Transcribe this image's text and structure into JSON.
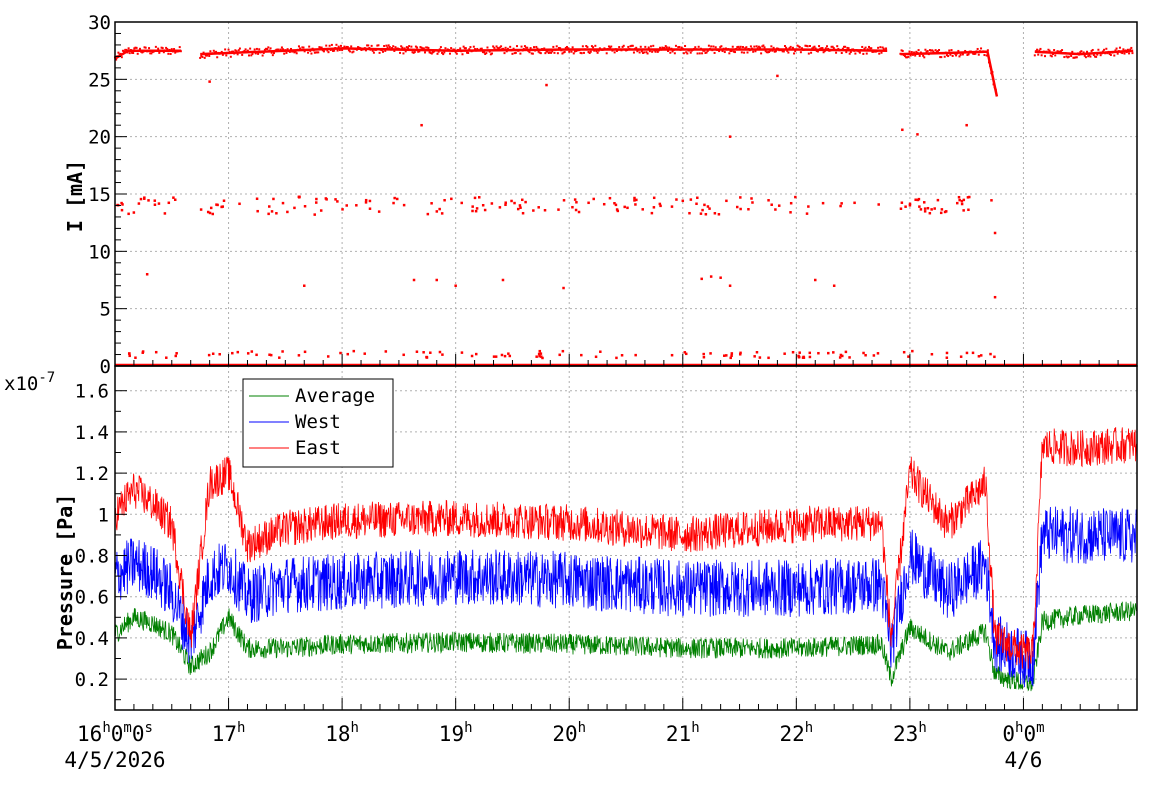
{
  "chart_data": [
    {
      "type": "scatter",
      "ylabel": "I [mA]",
      "ylim": [
        0,
        30
      ],
      "yticks": [
        "0",
        "5",
        "10",
        "15",
        "20",
        "25",
        "30"
      ],
      "grid": true,
      "colors": {
        "current": "#ff0000"
      },
      "series": [
        {
          "segments": [
            {
              "x": [
                "16:00",
                "16:07",
                "16:20",
                "16:35"
              ],
              "y": [
                26.8,
                27.5,
                27.5,
                27.5
              ]
            },
            {
              "x": [
                "16:45",
                "17:30",
                "18:00",
                "19:00",
                "20:00",
                "21:00",
                "22:00",
                "22:48"
              ],
              "y": [
                27.2,
                27.5,
                27.7,
                27.5,
                27.6,
                27.6,
                27.6,
                27.5
              ]
            },
            {
              "x": [
                "22:55",
                "23:20",
                "23:40",
                "23:41",
                "23:46"
              ],
              "y": [
                27.2,
                27.3,
                27.4,
                27.4,
                23.5
              ]
            },
            {
              "x": [
                "00:06",
                "00:30",
                "00:58"
              ],
              "y": [
                27.4,
                27.2,
                27.5
              ]
            }
          ],
          "outlier_bands_mA": [
            14,
            1,
            0
          ],
          "sparse_points": [
            {
              "x": "16:17",
              "y": 8
            },
            {
              "x": "16:50",
              "y": 24.8
            },
            {
              "x": "17:40",
              "y": 7
            },
            {
              "x": "18:42",
              "y": 21
            },
            {
              "x": "18:38",
              "y": 7.5
            },
            {
              "x": "18:50",
              "y": 7.5
            },
            {
              "x": "19:00",
              "y": 7
            },
            {
              "x": "19:25",
              "y": 7.5
            },
            {
              "x": "19:48",
              "y": 24.5
            },
            {
              "x": "19:57",
              "y": 6.8
            },
            {
              "x": "21:10",
              "y": 7.6
            },
            {
              "x": "21:15",
              "y": 7.8
            },
            {
              "x": "21:20",
              "y": 7.7
            },
            {
              "x": "21:25",
              "y": 7
            },
            {
              "x": "21:25",
              "y": 20
            },
            {
              "x": "21:50",
              "y": 25.3
            },
            {
              "x": "22:10",
              "y": 7.5
            },
            {
              "x": "22:20",
              "y": 7
            },
            {
              "x": "22:56",
              "y": 20.6
            },
            {
              "x": "23:04",
              "y": 20.2
            },
            {
              "x": "23:30",
              "y": 21
            },
            {
              "x": "23:45",
              "y": 11.6
            },
            {
              "x": "23:45",
              "y": 6
            }
          ]
        }
      ]
    },
    {
      "type": "line",
      "ylabel": "Pressure [Pa]",
      "exponent_label": "x10",
      "exponent_value": "-7",
      "ylim": [
        0.05,
        1.72
      ],
      "yticks": [
        "0.2",
        "0.4",
        "0.6",
        "0.8",
        "1",
        "1.2",
        "1.4",
        "1.6"
      ],
      "grid": true,
      "legend_position": "top-left",
      "series": [
        {
          "name": "Average",
          "color": "#008000",
          "x": [
            "16:00",
            "16:10",
            "16:20",
            "16:30",
            "16:40",
            "16:50",
            "17:00",
            "17:10",
            "17:30",
            "18:00",
            "19:00",
            "20:00",
            "21:00",
            "22:00",
            "22:45",
            "22:50",
            "23:00",
            "23:20",
            "23:40",
            "23:45",
            "00:00",
            "00:05",
            "00:10",
            "00:30",
            "00:58"
          ],
          "y": [
            0.42,
            0.5,
            0.47,
            0.42,
            0.26,
            0.33,
            0.5,
            0.35,
            0.35,
            0.37,
            0.38,
            0.37,
            0.35,
            0.35,
            0.37,
            0.2,
            0.45,
            0.33,
            0.43,
            0.22,
            0.18,
            0.18,
            0.48,
            0.51,
            0.53
          ]
        },
        {
          "name": "West",
          "color": "#0000ff",
          "x": [
            "16:00",
            "16:10",
            "16:20",
            "16:30",
            "16:40",
            "16:50",
            "17:00",
            "17:10",
            "17:30",
            "18:00",
            "19:00",
            "20:00",
            "21:00",
            "22:00",
            "22:45",
            "22:50",
            "23:00",
            "23:20",
            "23:40",
            "23:45",
            "00:00",
            "00:05",
            "00:10",
            "00:30",
            "00:58"
          ],
          "y": [
            0.7,
            0.76,
            0.72,
            0.62,
            0.38,
            0.7,
            0.75,
            0.6,
            0.66,
            0.67,
            0.7,
            0.68,
            0.64,
            0.64,
            0.66,
            0.35,
            0.8,
            0.62,
            0.76,
            0.38,
            0.3,
            0.3,
            0.9,
            0.9,
            0.89
          ]
        },
        {
          "name": "East",
          "color": "#ff0000",
          "x": [
            "16:00",
            "16:10",
            "16:20",
            "16:30",
            "16:40",
            "16:50",
            "17:00",
            "17:10",
            "17:30",
            "18:00",
            "19:00",
            "20:00",
            "21:00",
            "22:00",
            "22:45",
            "22:50",
            "23:00",
            "23:20",
            "23:40",
            "23:45",
            "00:00",
            "00:05",
            "00:10",
            "00:30",
            "00:58"
          ],
          "y": [
            1.0,
            1.12,
            1.05,
            0.95,
            0.4,
            1.15,
            1.2,
            0.85,
            0.93,
            0.97,
            0.98,
            0.96,
            0.9,
            0.95,
            0.96,
            0.4,
            1.2,
            0.95,
            1.15,
            0.4,
            0.33,
            0.33,
            1.33,
            1.32,
            1.34
          ]
        }
      ]
    }
  ],
  "x_axis": {
    "xlim": [
      "4/5/2026 16:00",
      "4/6/2026 01:00"
    ],
    "major_ticks": [
      {
        "t": "16:00",
        "main": "16",
        "parts": [
          {
            "sup": "h"
          },
          {
            "txt": "0"
          },
          {
            "sup": "m"
          },
          {
            "txt": "0"
          },
          {
            "sup": "s"
          }
        ]
      },
      {
        "t": "17:00",
        "main": "17",
        "parts": [
          {
            "sup": "h"
          }
        ]
      },
      {
        "t": "18:00",
        "main": "18",
        "parts": [
          {
            "sup": "h"
          }
        ]
      },
      {
        "t": "19:00",
        "main": "19",
        "parts": [
          {
            "sup": "h"
          }
        ]
      },
      {
        "t": "20:00",
        "main": "20",
        "parts": [
          {
            "sup": "h"
          }
        ]
      },
      {
        "t": "21:00",
        "main": "21",
        "parts": [
          {
            "sup": "h"
          }
        ]
      },
      {
        "t": "22:00",
        "main": "22",
        "parts": [
          {
            "sup": "h"
          }
        ]
      },
      {
        "t": "23:00",
        "main": "23",
        "parts": [
          {
            "sup": "h"
          }
        ]
      },
      {
        "t": "00:00",
        "main": "0",
        "parts": [
          {
            "sup": "h"
          },
          {
            "txt": "0"
          },
          {
            "sup": "m"
          }
        ]
      }
    ],
    "date_labels": [
      {
        "t": "16:00",
        "text": "4/5/2026"
      },
      {
        "t": "00:00",
        "text": "4/6"
      }
    ]
  }
}
